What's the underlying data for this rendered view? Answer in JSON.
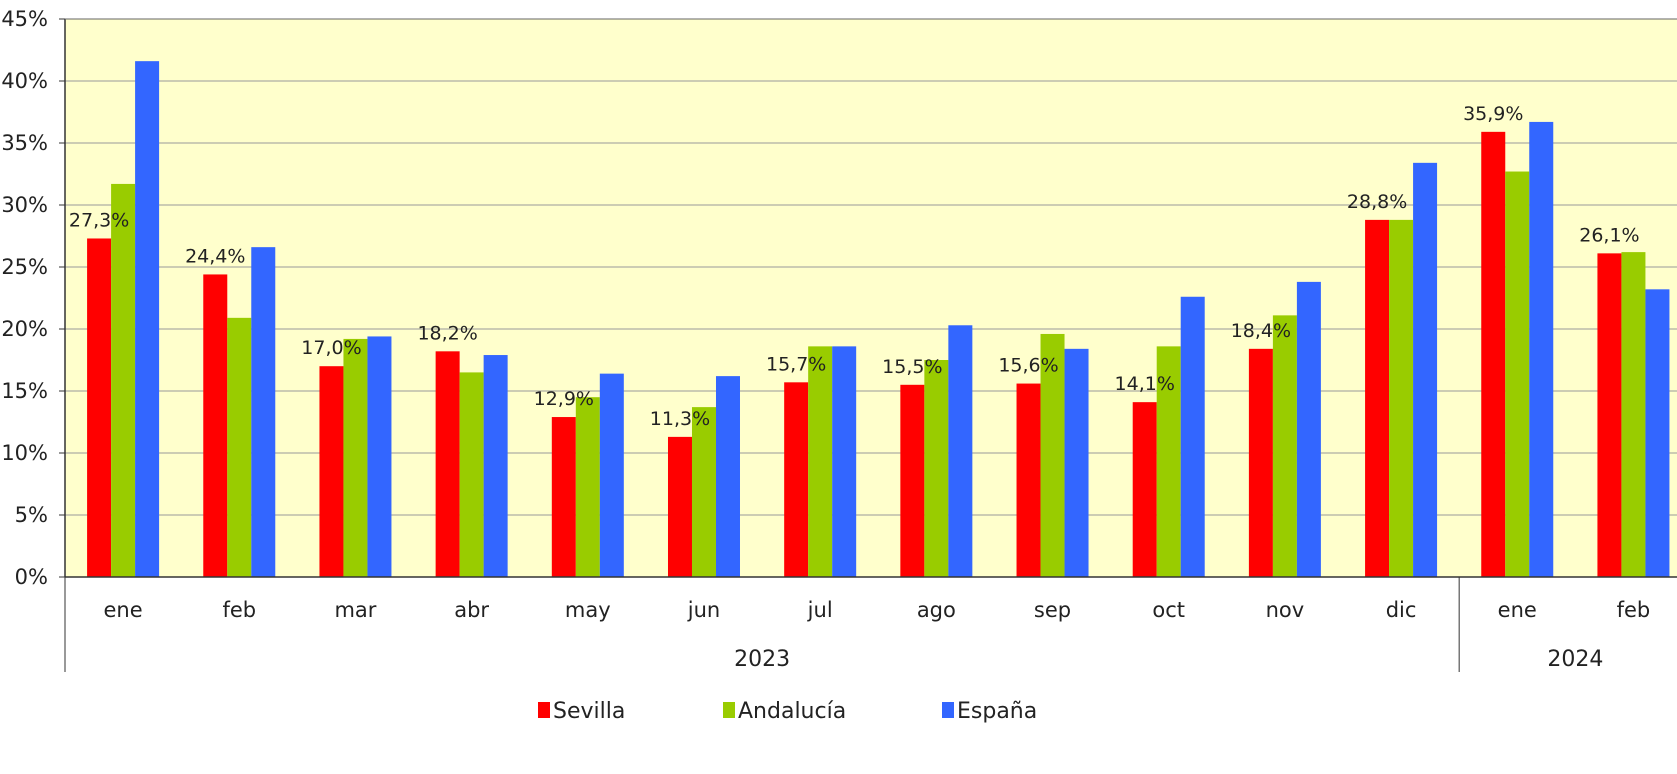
{
  "chart_data": {
    "type": "bar",
    "title": "",
    "xlabel": "",
    "ylabel": "",
    "ylim": [
      0,
      45
    ],
    "y_ticks": [
      0,
      5,
      10,
      15,
      20,
      25,
      30,
      35,
      40,
      45
    ],
    "y_tick_labels": [
      "0%",
      "5%",
      "10%",
      "15%",
      "20%",
      "25%",
      "30%",
      "35%",
      "40%",
      "45%"
    ],
    "grid": true,
    "legend_position": "bottom",
    "plot_background": "#FFFFCC",
    "categories": [
      "ene",
      "feb",
      "mar",
      "abr",
      "may",
      "jun",
      "jul",
      "ago",
      "sep",
      "oct",
      "nov",
      "dic",
      "ene",
      "feb"
    ],
    "groups": [
      {
        "label": "2023",
        "count": 12
      },
      {
        "label": "2024",
        "count": 2
      }
    ],
    "series": [
      {
        "name": "Sevilla",
        "color": "#FF0000",
        "values": [
          27.3,
          24.4,
          17.0,
          18.2,
          12.9,
          11.3,
          15.7,
          15.5,
          15.6,
          14.1,
          18.4,
          28.8,
          35.9,
          26.1
        ],
        "data_labels": [
          "27,3%",
          "24,4%",
          "17,0%",
          "18,2%",
          "12,9%",
          "11,3%",
          "15,7%",
          "15,5%",
          "15,6%",
          "14,1%",
          "18,4%",
          "28,8%",
          "35,9%",
          "26,1%"
        ]
      },
      {
        "name": "Andalucía",
        "color": "#99CC00",
        "values": [
          31.7,
          20.9,
          19.2,
          16.5,
          14.5,
          13.7,
          18.6,
          17.5,
          19.6,
          18.6,
          21.1,
          28.8,
          32.7,
          26.2
        ]
      },
      {
        "name": "España",
        "color": "#3366FF",
        "values": [
          41.6,
          26.6,
          19.4,
          17.9,
          16.4,
          16.2,
          18.6,
          20.3,
          18.4,
          22.6,
          23.8,
          33.4,
          36.7,
          23.2
        ]
      }
    ]
  }
}
